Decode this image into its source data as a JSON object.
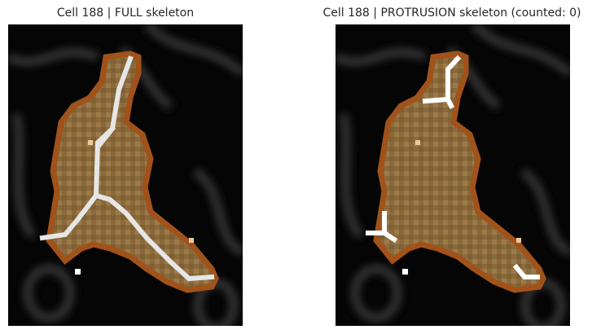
{
  "figure": {
    "left_title": "Cell 188 | FULL skeleton",
    "right_title": "Cell 188 | PROTRUSION skeleton (counted: 0)"
  },
  "colors": {
    "background": "#000000",
    "cell_fill": "#8a6a3c",
    "cell_fill_light": "#a07d48",
    "cell_border": "#a0521a",
    "skeleton": "#e8e8e8",
    "protrusion_skeleton": "#ffffff",
    "marker": "#f0c898",
    "tissue_gray": "#4a4a4a"
  }
}
